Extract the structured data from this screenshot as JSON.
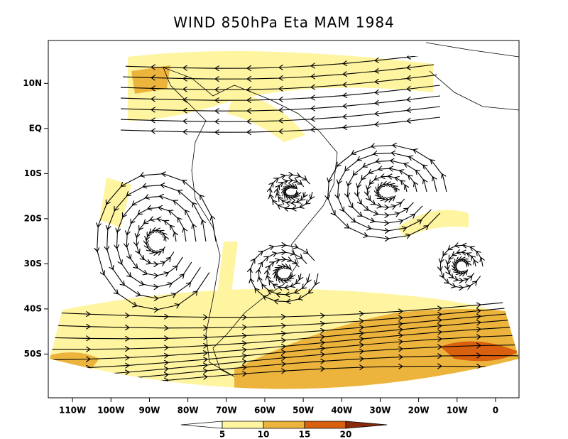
{
  "map": {
    "title": "WIND 850hPa Eta MAM 1984",
    "lon_lim": [
      -116.3,
      6.1
    ],
    "lat_lim": [
      -59.7,
      19.5
    ],
    "lon_ticks": [
      {
        "value": -110,
        "label": "110W"
      },
      {
        "value": -100,
        "label": "100W"
      },
      {
        "value": -90,
        "label": "90W"
      },
      {
        "value": -80,
        "label": "80W"
      },
      {
        "value": -70,
        "label": "70W"
      },
      {
        "value": -60,
        "label": "60W"
      },
      {
        "value": -50,
        "label": "50W"
      },
      {
        "value": -40,
        "label": "40W"
      },
      {
        "value": -30,
        "label": "30W"
      },
      {
        "value": -20,
        "label": "20W"
      },
      {
        "value": -10,
        "label": "10W"
      },
      0
    ],
    "lat_ticks": [
      {
        "value": 10,
        "label": "10N"
      },
      {
        "value": 0,
        "label": "EQ"
      },
      {
        "value": -10,
        "label": "10S"
      },
      {
        "value": -20,
        "label": "20S"
      },
      {
        "value": -30,
        "label": "30S"
      },
      {
        "value": -40,
        "label": "40S"
      },
      {
        "value": -50,
        "label": "50S"
      }
    ],
    "colorbar": {
      "levels": [
        5,
        10,
        15,
        20
      ],
      "colors": [
        "#ffffff",
        "#fff5a0",
        "#ecb43c",
        "#d8600e",
        "#8a2a0a"
      ]
    }
  }
}
